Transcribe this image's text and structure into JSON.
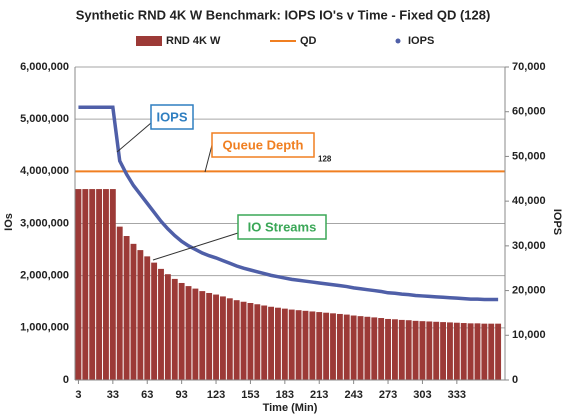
{
  "chart_data": {
    "type": "bar-line",
    "title": "Synthetic RND 4K W Benchmark: IOPS IO's v Time - Fixed QD (128)",
    "x_label": "Time (Min)",
    "y_label": "IOs",
    "y2_label": "IOPS",
    "xlim": [
      0,
      375
    ],
    "xticks": [
      3,
      33,
      63,
      93,
      123,
      153,
      183,
      213,
      243,
      273,
      303,
      333
    ],
    "ylim": [
      0,
      6000000
    ],
    "yticks": [
      {
        "value": 0,
        "label": "0"
      },
      {
        "value": 1000000,
        "label": "1,000,000"
      },
      {
        "value": 2000000,
        "label": "2,000,000"
      },
      {
        "value": 3000000,
        "label": "3,000,000"
      },
      {
        "value": 4000000,
        "label": "4,000,000"
      },
      {
        "value": 5000000,
        "label": "5,000,000"
      },
      {
        "value": 6000000,
        "label": "6,000,000"
      }
    ],
    "y2lim": [
      0,
      70000
    ],
    "y2ticks": [
      {
        "value": 0,
        "label": "0"
      },
      {
        "value": 10000,
        "label": "10,000"
      },
      {
        "value": 20000,
        "label": "20,000"
      },
      {
        "value": 30000,
        "label": "30,000"
      },
      {
        "value": 40000,
        "label": "40,000"
      },
      {
        "value": 50000,
        "label": "50,000"
      },
      {
        "value": 60000,
        "label": "60,000"
      },
      {
        "value": 70000,
        "label": "70,000"
      }
    ],
    "y3lim": [
      0,
      192
    ],
    "grid": true,
    "legend": "top",
    "series": [
      {
        "name": "RND 4K W",
        "kind": "bar",
        "color": "#9c3a37",
        "axis": "y",
        "x": [
          3,
          9,
          15,
          21,
          27,
          33,
          39,
          45,
          51,
          57,
          63,
          69,
          75,
          81,
          87,
          93,
          99,
          105,
          111,
          117,
          123,
          129,
          135,
          141,
          147,
          153,
          159,
          165,
          171,
          177,
          183,
          189,
          195,
          201,
          207,
          213,
          219,
          225,
          231,
          237,
          243,
          249,
          255,
          261,
          267,
          273,
          279,
          285,
          291,
          297,
          303,
          309,
          315,
          321,
          327,
          333,
          339,
          345,
          351,
          357,
          363,
          369
        ],
        "values": [
          3660000,
          3660000,
          3660000,
          3660000,
          3660000,
          3660000,
          2940000,
          2760000,
          2610000,
          2490000,
          2370000,
          2250000,
          2130000,
          2028000,
          1938000,
          1860000,
          1800000,
          1752000,
          1704000,
          1668000,
          1638000,
          1602000,
          1566000,
          1530000,
          1500000,
          1476000,
          1452000,
          1428000,
          1404000,
          1386000,
          1368000,
          1350000,
          1338000,
          1326000,
          1314000,
          1302000,
          1290000,
          1278000,
          1266000,
          1254000,
          1236000,
          1224000,
          1212000,
          1200000,
          1188000,
          1170000,
          1164000,
          1152000,
          1146000,
          1134000,
          1128000,
          1122000,
          1116000,
          1110000,
          1104000,
          1098000,
          1092000,
          1086000,
          1086000,
          1080000,
          1080000,
          1080000
        ]
      },
      {
        "name": "QD",
        "kind": "line",
        "color": "#f07f21",
        "axis": "y3",
        "x": [
          0,
          375
        ],
        "values": [
          128,
          128
        ]
      },
      {
        "name": "IOPS",
        "kind": "dots",
        "color": "#4f5fa8",
        "axis": "y2",
        "x": [
          3,
          9,
          15,
          21,
          27,
          33,
          39,
          45,
          51,
          57,
          63,
          69,
          75,
          81,
          87,
          93,
          99,
          105,
          111,
          117,
          123,
          129,
          135,
          141,
          147,
          153,
          159,
          165,
          171,
          177,
          183,
          189,
          195,
          201,
          207,
          213,
          219,
          225,
          231,
          237,
          243,
          249,
          255,
          261,
          267,
          273,
          279,
          285,
          291,
          297,
          303,
          309,
          315,
          321,
          327,
          333,
          339,
          345,
          351,
          357,
          363,
          369
        ],
        "values": [
          61000,
          61000,
          61000,
          61000,
          61000,
          61000,
          49000,
          46000,
          43500,
          41500,
          39500,
          37500,
          35500,
          33800,
          32300,
          31000,
          30000,
          29200,
          28400,
          27800,
          27300,
          26700,
          26100,
          25500,
          25000,
          24600,
          24200,
          23800,
          23400,
          23100,
          22800,
          22500,
          22300,
          22100,
          21900,
          21700,
          21500,
          21300,
          21100,
          20900,
          20600,
          20400,
          20200,
          20000,
          19800,
          19500,
          19400,
          19200,
          19100,
          18900,
          18800,
          18700,
          18600,
          18500,
          18400,
          18300,
          18200,
          18100,
          18100,
          18000,
          18000,
          18000
        ]
      }
    ],
    "annotations": [
      "IOPS",
      "Queue Depth",
      "IO Streams"
    ]
  }
}
